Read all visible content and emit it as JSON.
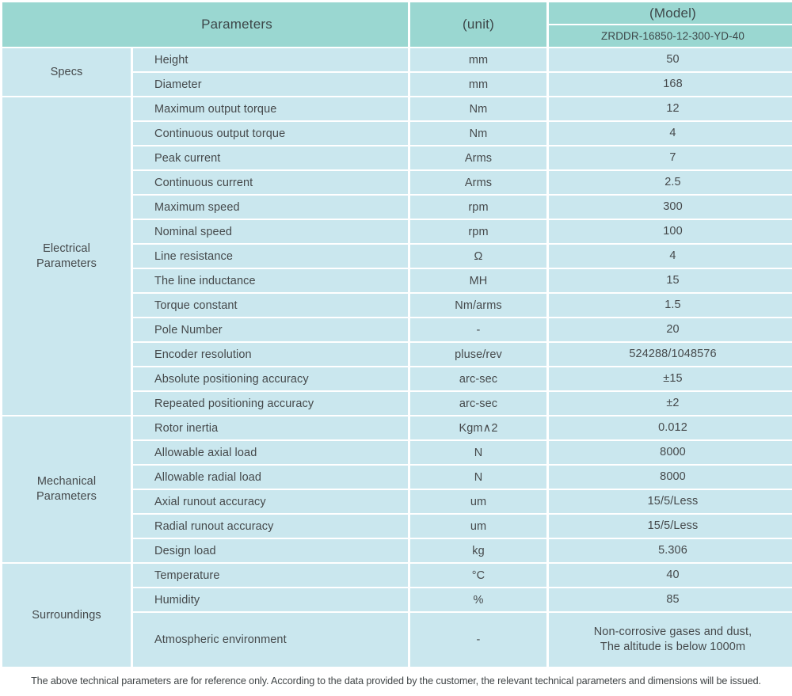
{
  "header": {
    "parameters_label": "Parameters",
    "unit_label": "(unit)",
    "model_label": "(Model)",
    "model_number": "ZRDDR-16850-12-300-YD-40"
  },
  "colors": {
    "header_bg": "#9ad7d1",
    "cell_bg": "#cae7ee",
    "text": "#45494b",
    "divider": "#ffffff",
    "page_bg": "#ffffff"
  },
  "sections": [
    {
      "label": "Specs",
      "label_lines": [
        "Specs"
      ],
      "rows": [
        {
          "name": "Height",
          "unit": "mm",
          "value": "50"
        },
        {
          "name": "Diameter",
          "unit": "mm",
          "value": "168"
        }
      ]
    },
    {
      "label": "Electrical Parameters",
      "label_lines": [
        "Electrical",
        "Parameters"
      ],
      "rows": [
        {
          "name": "Maximum output torque",
          "unit": "Nm",
          "value": "12"
        },
        {
          "name": "Continuous output torque",
          "unit": "Nm",
          "value": "4"
        },
        {
          "name": "Peak current",
          "unit": "Arms",
          "value": "7"
        },
        {
          "name": "Continuous current",
          "unit": "Arms",
          "value": "2.5"
        },
        {
          "name": "Maximum speed",
          "unit": "rpm",
          "value": "300"
        },
        {
          "name": "Nominal speed",
          "unit": "rpm",
          "value": "100"
        },
        {
          "name": "Line resistance",
          "unit": "Ω",
          "value": "4"
        },
        {
          "name": "The line inductance",
          "unit": "MH",
          "value": "15"
        },
        {
          "name": "Torque constant",
          "unit": "Nm/arms",
          "value": "1.5"
        },
        {
          "name": "Pole Number",
          "unit": "-",
          "value": "20"
        },
        {
          "name": "Encoder resolution",
          "unit": "pluse/rev",
          "value": "524288/1048576"
        },
        {
          "name": "Absolute positioning accuracy",
          "unit": "arc-sec",
          "value": "±15"
        },
        {
          "name": "Repeated positioning accuracy",
          "unit": "arc-sec",
          "value": "±2"
        }
      ]
    },
    {
      "label": "Mechanical Parameters",
      "label_lines": [
        "Mechanical",
        "Parameters"
      ],
      "rows": [
        {
          "name": "Rotor inertia",
          "unit": "Kgm∧2",
          "value": "0.012"
        },
        {
          "name": "Allowable axial load",
          "unit": "N",
          "value": "8000"
        },
        {
          "name": "Allowable radial load",
          "unit": "N",
          "value": "8000"
        },
        {
          "name": "Axial runout accuracy",
          "unit": "um",
          "value": "15/5/Less"
        },
        {
          "name": "Radial runout accuracy",
          "unit": "um",
          "value": "15/5/Less"
        },
        {
          "name": "Design load",
          "unit": "kg",
          "value": "5.306"
        }
      ]
    },
    {
      "label": "Surroundings",
      "label_lines": [
        "Surroundings"
      ],
      "rows": [
        {
          "name": "Temperature",
          "unit": "°C",
          "value": "40"
        },
        {
          "name": "Humidity",
          "unit": "%",
          "value": "85"
        },
        {
          "name": "Atmospheric environment",
          "unit": "-",
          "value_lines": [
            "Non-corrosive gases and dust,",
            "The altitude is below 1000m"
          ]
        }
      ]
    }
  ],
  "footer": {
    "note": "The above technical parameters are for reference only. According to the data provided by the customer, the relevant technical parameters and dimensions will be issued."
  }
}
